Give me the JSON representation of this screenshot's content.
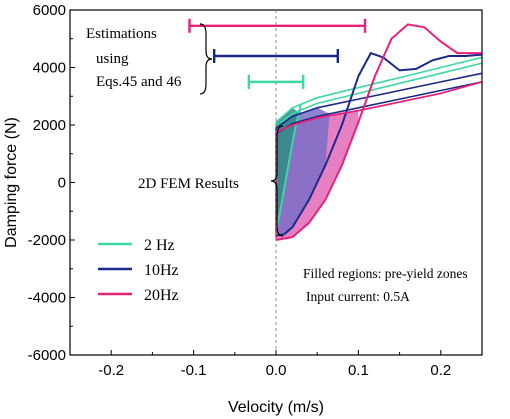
{
  "chart_data": {
    "type": "line",
    "xlabel": "Velocity (m/s)",
    "ylabel": "Damping force (N)",
    "xlim": [
      -0.25,
      0.25
    ],
    "ylim": [
      -6000,
      6000
    ],
    "x_ticks": [
      -0.2,
      -0.1,
      0.0,
      0.1,
      0.2
    ],
    "x_tick_labels": [
      "-0.2",
      "-0.1",
      "0.0",
      "0.1",
      "0.2"
    ],
    "y_ticks": [
      -6000,
      -4000,
      -2000,
      0,
      2000,
      4000,
      6000
    ],
    "y_tick_labels": [
      "-6000",
      "-4000",
      "-2000",
      "0",
      "2000",
      "4000",
      "6000"
    ],
    "grid": false,
    "zero_line": {
      "x": 0.0,
      "style": "dashed",
      "color": "#888888"
    },
    "legend": {
      "placement": "bottom-left",
      "entries": [
        {
          "label": "2 Hz",
          "color": "#3fd6a6"
        },
        {
          "label": "10Hz",
          "color": "#1b2a8a"
        },
        {
          "label": "20Hz",
          "color": "#e8217a"
        }
      ]
    },
    "series": [
      {
        "name": "2 Hz",
        "color": "#3fd6a6",
        "fill_color": "#2e8b86",
        "upper": {
          "x": [
            0.0,
            0.02,
            0.05,
            0.1,
            0.15,
            0.2,
            0.25
          ],
          "y": [
            2100,
            2600,
            2950,
            3300,
            3650,
            4000,
            4350
          ]
        },
        "lower": {
          "x": [
            0.0,
            0.02,
            0.05,
            0.1,
            0.15,
            0.2,
            0.25
          ],
          "y": [
            1950,
            2400,
            2750,
            3100,
            3450,
            3800,
            4150
          ]
        },
        "return": {
          "x": [
            0.0,
            0.005,
            0.01,
            0.015,
            0.02,
            0.025,
            0.03
          ],
          "y": [
            -1700,
            -1000,
            -200,
            600,
            1400,
            2100,
            2700
          ]
        }
      },
      {
        "name": "10Hz",
        "color": "#1b2a8a",
        "fill_color": "#7a6fc8",
        "upper": {
          "x": [
            0.0,
            0.02,
            0.05,
            0.1,
            0.15,
            0.2,
            0.25
          ],
          "y": [
            1900,
            2300,
            2600,
            2900,
            3200,
            3500,
            3800
          ]
        },
        "lower": {
          "x": [
            0.0,
            0.02,
            0.05,
            0.1,
            0.15,
            0.2,
            0.25
          ],
          "y": [
            1700,
            2050,
            2300,
            2600,
            2900,
            3200,
            3500
          ]
        },
        "return": {
          "x": [
            0.0,
            0.01,
            0.02,
            0.04,
            0.06,
            0.08,
            0.1,
            0.115,
            0.13,
            0.15,
            0.17,
            0.19,
            0.21,
            0.23,
            0.25
          ],
          "y": [
            -1850,
            -1800,
            -1550,
            -600,
            600,
            2000,
            3700,
            4500,
            4350,
            3900,
            3950,
            4250,
            4400,
            4400,
            4450
          ]
        }
      },
      {
        "name": "20Hz",
        "color": "#e8217a",
        "fill_color": "#e06bb7",
        "upper": {
          "x": [
            0.0,
            0.02,
            0.05,
            0.1,
            0.15,
            0.2,
            0.25
          ],
          "y": [
            1750,
            2000,
            2250,
            2500,
            2800,
            3100,
            3500
          ]
        },
        "lower": {
          "x": [
            0.0,
            0.02,
            0.05,
            0.1,
            0.15,
            0.2,
            0.25
          ],
          "y": [
            1750,
            2000,
            2250,
            2500,
            2800,
            3100,
            3500
          ]
        },
        "return": {
          "x": [
            0.0,
            0.02,
            0.04,
            0.06,
            0.08,
            0.1,
            0.12,
            0.14,
            0.16,
            0.18,
            0.2,
            0.22,
            0.25
          ],
          "y": [
            -2000,
            -1900,
            -1400,
            -600,
            600,
            2100,
            3700,
            5000,
            5500,
            5400,
            4900,
            4500,
            4500
          ]
        }
      }
    ],
    "estimation_bars": [
      {
        "name": "20Hz",
        "color": "#e8217a",
        "x_range": [
          -0.105,
          0.108
        ],
        "y": 5450
      },
      {
        "name": "10Hz",
        "color": "#1b2a8a",
        "x_range": [
          -0.075,
          0.075
        ],
        "y": 4400
      },
      {
        "name": "2 Hz",
        "color": "#3fd6a6",
        "x_range": [
          -0.033,
          0.033
        ],
        "y": 3500
      }
    ],
    "annotations": {
      "estimations_label": [
        "Estimations",
        "using",
        "Eqs.45 and 46"
      ],
      "fem_label": "2D FEM Results",
      "filled_regions": "Filled regions: pre-yield zones",
      "input_current": "Input current: 0.5A"
    }
  }
}
